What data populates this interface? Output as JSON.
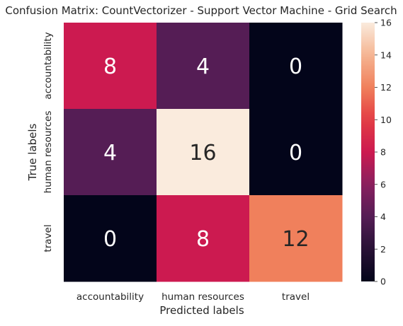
{
  "chart_data": {
    "type": "heatmap",
    "title": "Confusion Matrix: CountVectorizer - Support Vector Machine - Grid Search",
    "xlabel": "Predicted labels",
    "ylabel": "True labels",
    "x_categories": [
      "accountability",
      "human resources",
      "travel"
    ],
    "y_categories": [
      "accountability",
      "human resources",
      "travel"
    ],
    "values": [
      [
        8,
        4,
        0
      ],
      [
        4,
        16,
        0
      ],
      [
        0,
        8,
        12
      ]
    ],
    "colorbar": {
      "range": [
        0,
        16
      ],
      "ticks": [
        "0",
        "2",
        "4",
        "6",
        "8",
        "10",
        "12",
        "14",
        "16"
      ]
    },
    "colormap": "rocket"
  }
}
